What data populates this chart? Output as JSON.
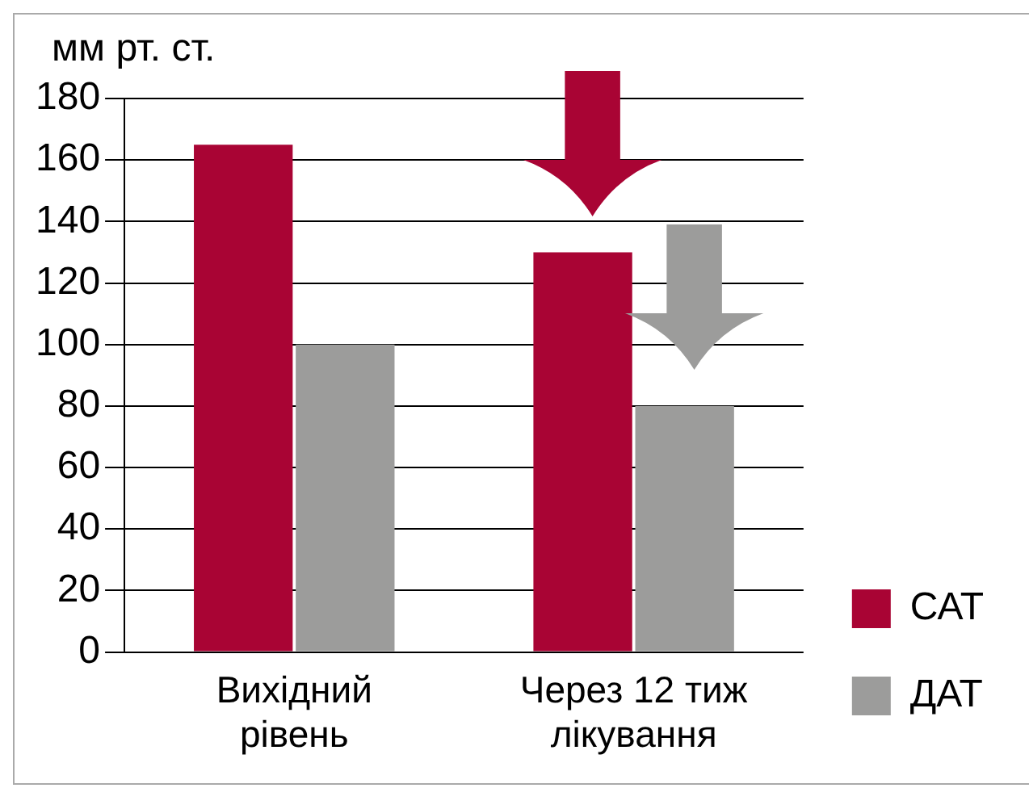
{
  "chart_data": {
    "type": "bar",
    "ylabel": "мм рт. ст.",
    "categories": [
      "Вихідний рівень",
      "Через 12 тиж лікування"
    ],
    "series": [
      {
        "name": "САТ",
        "color": "#a90434",
        "values": [
          165,
          130
        ]
      },
      {
        "name": "ДАТ",
        "color": "#9c9c9b",
        "values": [
          100,
          80
        ]
      }
    ],
    "ylim": [
      0,
      180
    ],
    "yticks": [
      0,
      20,
      40,
      60,
      80,
      100,
      120,
      140,
      160,
      180
    ],
    "grid": "y",
    "legend": "bottom right"
  }
}
